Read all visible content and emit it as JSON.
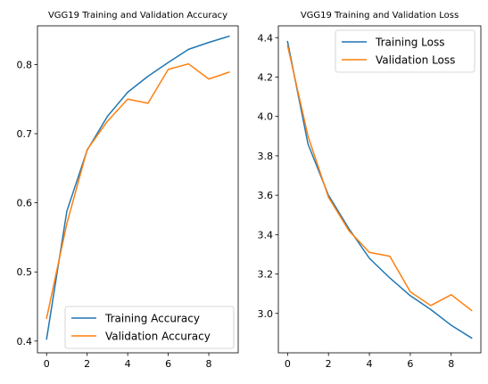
{
  "chart_data": [
    {
      "type": "line",
      "title": "VGG19 Training and Validation Accuracy",
      "xlabel": "",
      "ylabel": "",
      "xlim": [
        -0.45,
        9.45
      ],
      "ylim": [
        0.383,
        0.856
      ],
      "xticks": [
        0,
        2,
        4,
        6,
        8
      ],
      "yticks": [
        0.4,
        0.5,
        0.6,
        0.7,
        0.8
      ],
      "ytick_labels": [
        "0.4",
        "0.5",
        "0.6",
        "0.7",
        "0.8"
      ],
      "x": [
        0,
        1,
        2,
        3,
        4,
        5,
        6,
        7,
        8,
        9
      ],
      "series": [
        {
          "name": "Training Accuracy",
          "color": "#1f77b4",
          "values": [
            0.403,
            0.588,
            0.676,
            0.725,
            0.76,
            0.783,
            0.803,
            0.822,
            0.832,
            0.841
          ]
        },
        {
          "name": "Validation Accuracy",
          "color": "#ff7f0e",
          "values": [
            0.433,
            0.57,
            0.677,
            0.718,
            0.75,
            0.744,
            0.793,
            0.801,
            0.779,
            0.789
          ]
        }
      ],
      "grid": false,
      "legend": "lower-right"
    },
    {
      "type": "line",
      "title": "VGG19 Training and Validation Loss",
      "xlabel": "",
      "ylabel": "",
      "xlim": [
        -0.45,
        9.45
      ],
      "ylim": [
        2.8,
        4.46
      ],
      "xticks": [
        0,
        2,
        4,
        6,
        8
      ],
      "yticks": [
        3.0,
        3.2,
        3.4,
        3.6,
        3.8,
        4.0,
        4.2,
        4.4
      ],
      "ytick_labels": [
        "3.0",
        "3.2",
        "3.4",
        "3.6",
        "3.8",
        "4.0",
        "4.2",
        "4.4"
      ],
      "x": [
        0,
        1,
        2,
        3,
        4,
        5,
        6,
        7,
        8,
        9
      ],
      "series": [
        {
          "name": "Training Loss",
          "color": "#1f77b4",
          "values": [
            4.38,
            3.86,
            3.6,
            3.43,
            3.28,
            3.18,
            3.09,
            3.02,
            2.94,
            2.875
          ]
        },
        {
          "name": "Validation Loss",
          "color": "#ff7f0e",
          "values": [
            4.36,
            3.9,
            3.59,
            3.42,
            3.31,
            3.29,
            3.11,
            3.04,
            3.095,
            3.015
          ]
        }
      ],
      "grid": false,
      "legend": "upper-right"
    }
  ]
}
